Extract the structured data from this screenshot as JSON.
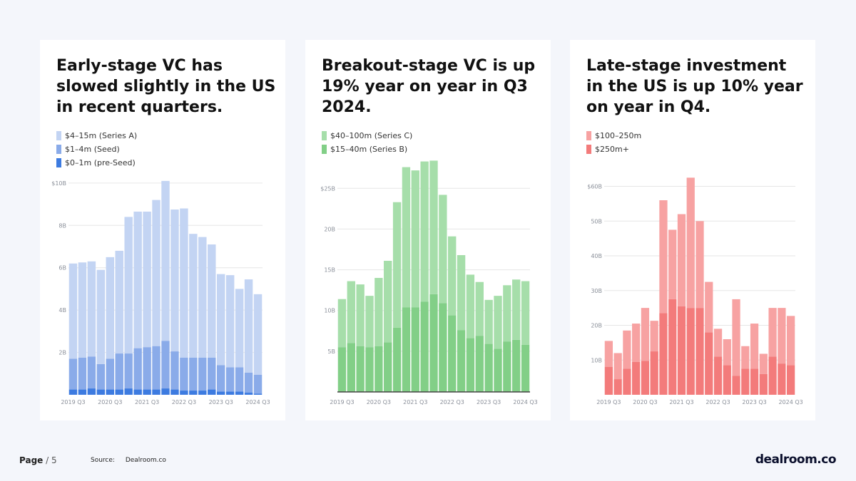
{
  "colors": {
    "blue_light": "#c3d4f3",
    "blue_mid": "#8aabe9",
    "blue_dark": "#3d7be0",
    "green_light": "#a6deaa",
    "green_dark": "#82cf87",
    "red_light": "#f7a2a2",
    "red_dark": "#f37b7b",
    "axis_text": "#8a8f99",
    "grid": "#e6e6e6"
  },
  "footer": {
    "page_label": "Page",
    "page_number": "/ 5",
    "source_label": "Source:",
    "source_value": "Dealroom.co",
    "logo_text": "dealroom.co"
  },
  "chart_data": [
    {
      "type": "bar",
      "stacked": true,
      "title": "Early-stage VC has slowed slightly in the US in recent quarters.",
      "categories": [
        "2019 Q3",
        "2019 Q4",
        "2020 Q1",
        "2020 Q2",
        "2020 Q3",
        "2020 Q4",
        "2021 Q1",
        "2021 Q2",
        "2021 Q3",
        "2021 Q4",
        "2022 Q1",
        "2022 Q2",
        "2022 Q3",
        "2022 Q4",
        "2023 Q1",
        "2023 Q2",
        "2023 Q3",
        "2023 Q4",
        "2024 Q1",
        "2024 Q2",
        "2024 Q3"
      ],
      "tick_labels": [
        "2019 Q3",
        "2020 Q3",
        "2021 Q3",
        "2022 Q3",
        "2023 Q3",
        "2024 Q3"
      ],
      "y_ticks": [
        {
          "value": 2,
          "label": "2B"
        },
        {
          "value": 4,
          "label": "4B"
        },
        {
          "value": 6,
          "label": "6B"
        },
        {
          "value": 8,
          "label": "8B"
        },
        {
          "value": 10,
          "label": "$10B"
        }
      ],
      "ylim": [
        0,
        10.5
      ],
      "series": [
        {
          "name": "$0–1m (pre-Seed)",
          "color": "#3d7be0",
          "values": [
            0.25,
            0.25,
            0.3,
            0.25,
            0.25,
            0.25,
            0.3,
            0.25,
            0.25,
            0.25,
            0.3,
            0.25,
            0.2,
            0.2,
            0.2,
            0.25,
            0.15,
            0.15,
            0.15,
            0.1,
            0.05
          ]
        },
        {
          "name": "$1–4m (Seed)",
          "color": "#8aabe9",
          "values": [
            1.45,
            1.5,
            1.5,
            1.2,
            1.45,
            1.7,
            1.65,
            1.95,
            2.0,
            2.05,
            2.25,
            1.8,
            1.55,
            1.55,
            1.55,
            1.5,
            1.25,
            1.15,
            1.15,
            0.95,
            0.9
          ]
        },
        {
          "name": "$4–15m (Series A)",
          "color": "#c3d4f3",
          "values": [
            4.5,
            4.5,
            4.5,
            4.45,
            4.8,
            4.85,
            6.45,
            6.45,
            6.4,
            6.9,
            7.55,
            6.7,
            7.05,
            5.85,
            5.7,
            5.35,
            4.3,
            4.35,
            3.7,
            4.4,
            3.8
          ]
        }
      ]
    },
    {
      "type": "bar",
      "stacked": true,
      "title": "Breakout-stage VC is up 19% year on year in Q3 2024.",
      "categories": [
        "2019 Q3",
        "2019 Q4",
        "2020 Q1",
        "2020 Q2",
        "2020 Q3",
        "2020 Q4",
        "2021 Q1",
        "2021 Q2",
        "2021 Q3",
        "2021 Q4",
        "2022 Q1",
        "2022 Q2",
        "2022 Q3",
        "2022 Q4",
        "2023 Q1",
        "2023 Q2",
        "2023 Q3",
        "2023 Q4",
        "2024 Q1",
        "2024 Q2",
        "2024 Q3"
      ],
      "tick_labels": [
        "2019 Q3",
        "2020 Q3",
        "2021 Q3",
        "2022 Q3",
        "2023 Q3",
        "2024 Q3"
      ],
      "y_ticks": [
        {
          "value": 5,
          "label": "5B"
        },
        {
          "value": 10,
          "label": "10B"
        },
        {
          "value": 15,
          "label": "15B"
        },
        {
          "value": 20,
          "label": "20B"
        },
        {
          "value": 25,
          "label": "$25B"
        }
      ],
      "ylim": [
        0,
        28
      ],
      "series": [
        {
          "name": "$15–40m (Series B)",
          "color": "#82cf87",
          "values": [
            5.5,
            6.0,
            5.6,
            5.5,
            5.6,
            6.1,
            7.9,
            10.4,
            10.4,
            11.1,
            12.0,
            10.9,
            9.4,
            7.6,
            6.6,
            6.9,
            5.9,
            5.3,
            6.2,
            6.4,
            5.8
          ]
        },
        {
          "name": "$40–100m (Series C)",
          "color": "#a6deaa",
          "values": [
            5.9,
            7.6,
            7.6,
            6.3,
            8.4,
            10.0,
            15.4,
            17.2,
            16.8,
            17.2,
            16.4,
            13.3,
            9.7,
            9.2,
            7.8,
            6.6,
            5.4,
            6.5,
            6.9,
            7.4,
            7.8
          ]
        }
      ]
    },
    {
      "type": "bar",
      "stacked": true,
      "title": "Late-stage investment in the US is up 10% year on year in Q4.",
      "categories": [
        "2019 Q3",
        "2019 Q4",
        "2020 Q1",
        "2020 Q2",
        "2020 Q3",
        "2020 Q4",
        "2021 Q1",
        "2021 Q2",
        "2021 Q3",
        "2021 Q4",
        "2022 Q1",
        "2022 Q2",
        "2022 Q3",
        "2022 Q4",
        "2023 Q1",
        "2023 Q2",
        "2023 Q3",
        "2023 Q4",
        "2024 Q1",
        "2024 Q2",
        "2024 Q3"
      ],
      "tick_labels": [
        "2019 Q3",
        "2020 Q3",
        "2021 Q3",
        "2022 Q3",
        "2023 Q3",
        "2024 Q3"
      ],
      "y_ticks": [
        {
          "value": 10,
          "label": "10B"
        },
        {
          "value": 20,
          "label": "20B"
        },
        {
          "value": 30,
          "label": "30B"
        },
        {
          "value": 40,
          "label": "40B"
        },
        {
          "value": 50,
          "label": "50B"
        },
        {
          "value": 60,
          "label": "$60B"
        }
      ],
      "ylim": [
        0,
        64
      ],
      "series": [
        {
          "name": "$250m+",
          "color": "#f37b7b",
          "values": [
            8.0,
            4.5,
            7.5,
            9.5,
            9.8,
            12.5,
            23.5,
            27.5,
            25.5,
            25.0,
            25.0,
            18.0,
            11.0,
            8.5,
            5.5,
            7.5,
            7.5,
            6.0,
            11.0,
            9.0,
            8.5
          ]
        },
        {
          "name": "$100–250m",
          "color": "#f7a2a2",
          "values": [
            7.5,
            7.5,
            11.0,
            11.0,
            15.2,
            8.8,
            32.5,
            20.0,
            26.5,
            37.5,
            25.0,
            14.5,
            8.0,
            7.5,
            22.0,
            6.5,
            13.0,
            5.8,
            14.0,
            16.0,
            14.2
          ]
        }
      ]
    }
  ],
  "cards": [
    {
      "title": "Early-stage VC has slowed slightly in the US in recent quarters.",
      "legend": [
        {
          "label": "$4–15m (Series A)",
          "color": "#c3d4f3"
        },
        {
          "label": "$1–4m (Seed)",
          "color": "#8aabe9"
        },
        {
          "label": "$0–1m (pre-Seed)",
          "color": "#3d7be0"
        }
      ]
    },
    {
      "title": "Breakout-stage VC is up 19% year on year in Q3 2024.",
      "legend": [
        {
          "label": "$40–100m (Series C)",
          "color": "#a6deaa"
        },
        {
          "label": "$15–40m (Series B)",
          "color": "#82cf87"
        }
      ]
    },
    {
      "title": "Late-stage investment in the US is up 10% year on year in Q4.",
      "legend": [
        {
          "label": "$100–250m",
          "color": "#f7a2a2"
        },
        {
          "label": "$250m+",
          "color": "#f37b7b"
        }
      ]
    }
  ]
}
